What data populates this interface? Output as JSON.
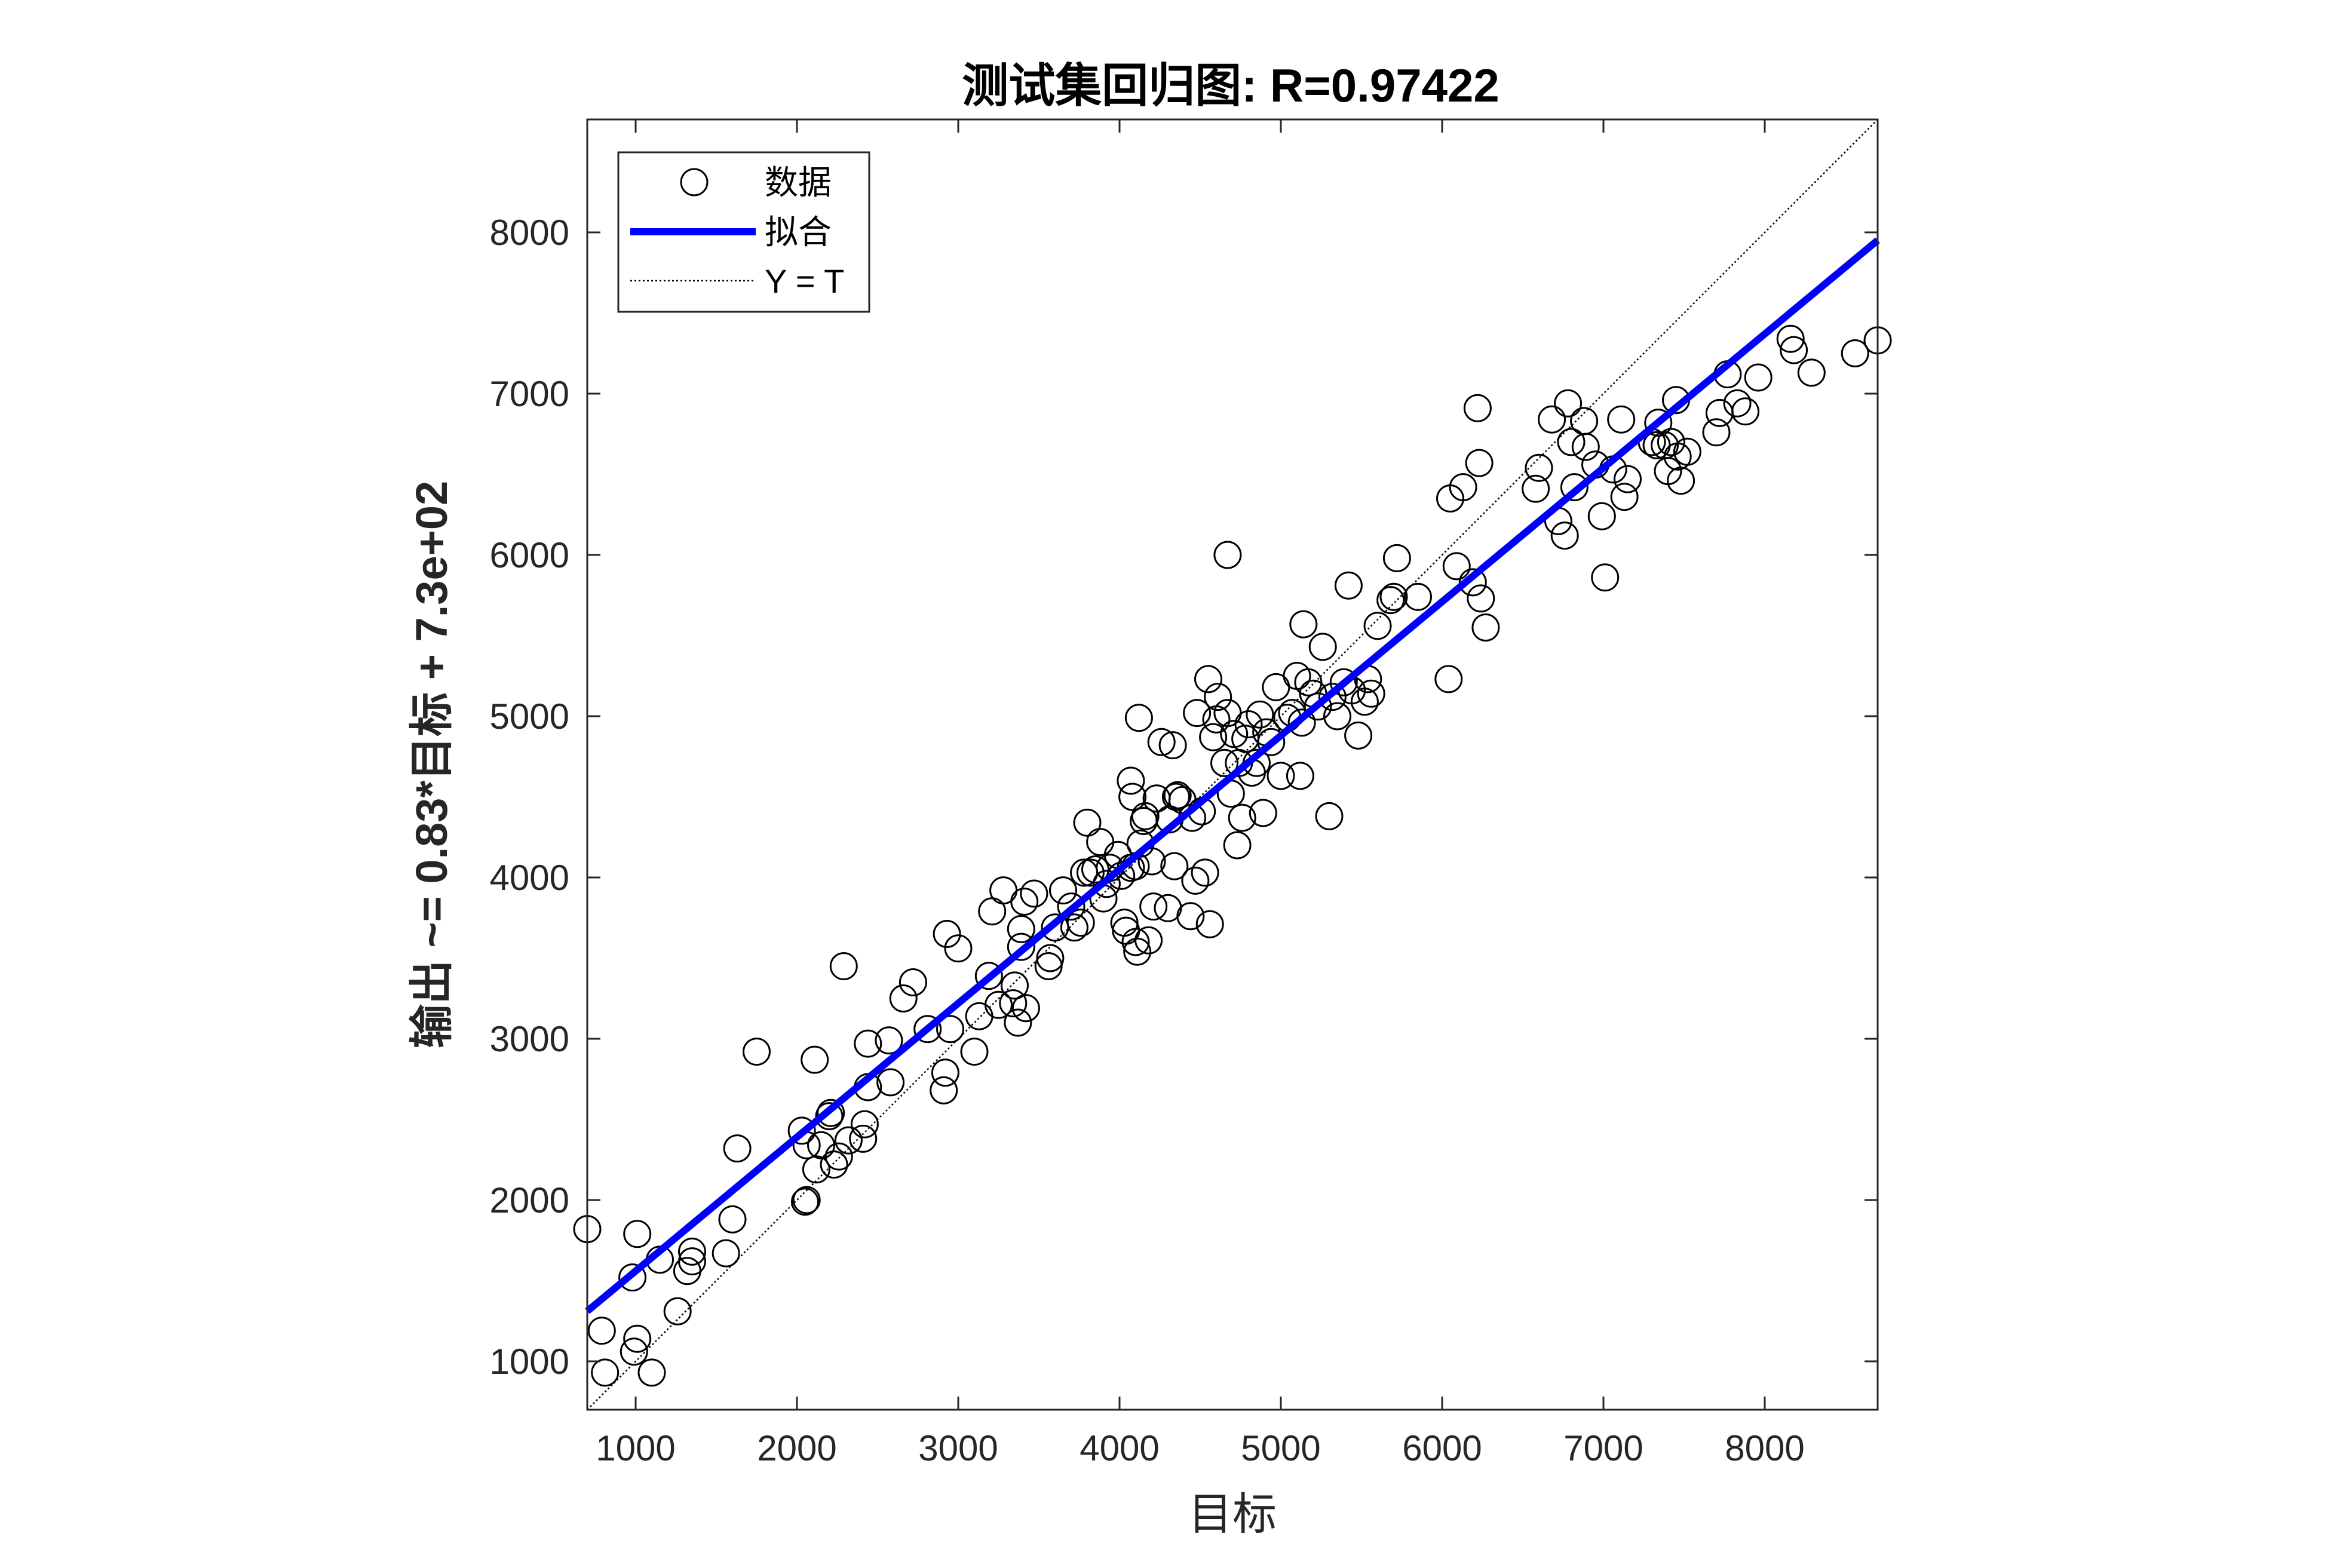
{
  "chart_data": {
    "type": "scatter",
    "title": "测试集回归图: R=0.97422",
    "xlabel": "目标",
    "ylabel": "输出 ~= 0.83*目标 + 7.3e+02",
    "xlim": [
      700,
      8700
    ],
    "ylim": [
      700,
      8700
    ],
    "xticks": [
      1000,
      2000,
      3000,
      4000,
      5000,
      6000,
      7000,
      8000
    ],
    "yticks": [
      1000,
      2000,
      3000,
      4000,
      5000,
      6000,
      7000,
      8000
    ],
    "xtick_labels": [
      "1000",
      "2000",
      "3000",
      "4000",
      "5000",
      "6000",
      "7000",
      "8000"
    ],
    "ytick_labels": [
      "1000",
      "2000",
      "3000",
      "4000",
      "5000",
      "6000",
      "7000",
      "8000"
    ],
    "grid": false,
    "legend_position": "top-left",
    "legend": [
      {
        "label": "数据",
        "marker": "circle",
        "color": "#000000"
      },
      {
        "label": "拟合",
        "marker": "line",
        "color": "#0000FF"
      },
      {
        "label": "Y = T",
        "marker": "dotted-line",
        "color": "#000000"
      }
    ],
    "fit": {
      "slope": 0.83,
      "intercept": 730,
      "color": "#0000FF"
    },
    "identity_line": {
      "color": "#000000"
    },
    "points": [
      [
        700,
        1820
      ],
      [
        790,
        1190
      ],
      [
        810,
        930
      ],
      [
        980,
        1520
      ],
      [
        990,
        1060
      ],
      [
        1010,
        1140
      ],
      [
        1010,
        1790
      ],
      [
        1100,
        930
      ],
      [
        1150,
        1630
      ],
      [
        1260,
        1310
      ],
      [
        1320,
        1560
      ],
      [
        1350,
        1620
      ],
      [
        1350,
        1680
      ],
      [
        1560,
        1670
      ],
      [
        1600,
        1880
      ],
      [
        1630,
        2320
      ],
      [
        1750,
        2920
      ],
      [
        2030,
        2430
      ],
      [
        2050,
        1990
      ],
      [
        2060,
        2000
      ],
      [
        2060,
        2340
      ],
      [
        2110,
        2870
      ],
      [
        2120,
        2190
      ],
      [
        2150,
        2340
      ],
      [
        2200,
        2520
      ],
      [
        2210,
        2540
      ],
      [
        2230,
        2220
      ],
      [
        2260,
        2270
      ],
      [
        2290,
        3450
      ],
      [
        2320,
        2370
      ],
      [
        2410,
        2380
      ],
      [
        2420,
        2470
      ],
      [
        2440,
        2700
      ],
      [
        2440,
        2970
      ],
      [
        2570,
        2990
      ],
      [
        2580,
        2730
      ],
      [
        2660,
        3250
      ],
      [
        2720,
        3350
      ],
      [
        2810,
        3060
      ],
      [
        2910,
        2680
      ],
      [
        2920,
        2790
      ],
      [
        2930,
        3650
      ],
      [
        2950,
        3060
      ],
      [
        3000,
        3560
      ],
      [
        3100,
        2920
      ],
      [
        3130,
        3140
      ],
      [
        3190,
        3390
      ],
      [
        3210,
        3790
      ],
      [
        3250,
        3210
      ],
      [
        3280,
        3920
      ],
      [
        3340,
        3220
      ],
      [
        3350,
        3330
      ],
      [
        3370,
        3100
      ],
      [
        3390,
        3570
      ],
      [
        3390,
        3680
      ],
      [
        3410,
        3850
      ],
      [
        3420,
        3190
      ],
      [
        3470,
        3900
      ],
      [
        3560,
        3450
      ],
      [
        3570,
        3500
      ],
      [
        3600,
        3690
      ],
      [
        3650,
        3920
      ],
      [
        3700,
        3820
      ],
      [
        3720,
        3690
      ],
      [
        3760,
        3720
      ],
      [
        3780,
        4030
      ],
      [
        3800,
        4340
      ],
      [
        3820,
        4030
      ],
      [
        3850,
        4050
      ],
      [
        3880,
        4220
      ],
      [
        3900,
        3870
      ],
      [
        3920,
        3960
      ],
      [
        3940,
        4060
      ],
      [
        3990,
        4140
      ],
      [
        4010,
        4010
      ],
      [
        4030,
        3720
      ],
      [
        4040,
        3670
      ],
      [
        4070,
        4060
      ],
      [
        4070,
        4600
      ],
      [
        4080,
        4500
      ],
      [
        4100,
        3600
      ],
      [
        4100,
        4070
      ],
      [
        4110,
        3540
      ],
      [
        4120,
        4990
      ],
      [
        4130,
        4210
      ],
      [
        4150,
        4350
      ],
      [
        4160,
        4380
      ],
      [
        4180,
        3610
      ],
      [
        4200,
        4100
      ],
      [
        4210,
        3820
      ],
      [
        4230,
        4490
      ],
      [
        4260,
        4840
      ],
      [
        4300,
        3810
      ],
      [
        4310,
        4360
      ],
      [
        4330,
        4820
      ],
      [
        4340,
        4070
      ],
      [
        4350,
        4500
      ],
      [
        4360,
        4510
      ],
      [
        4390,
        4480
      ],
      [
        4440,
        3760
      ],
      [
        4450,
        4370
      ],
      [
        4470,
        3980
      ],
      [
        4480,
        5020
      ],
      [
        4510,
        4410
      ],
      [
        4530,
        4030
      ],
      [
        4550,
        5230
      ],
      [
        4560,
        3710
      ],
      [
        4580,
        4870
      ],
      [
        4600,
        4980
      ],
      [
        4610,
        5120
      ],
      [
        4650,
        4710
      ],
      [
        4670,
        6000
      ],
      [
        4670,
        5020
      ],
      [
        4690,
        4520
      ],
      [
        4710,
        4890
      ],
      [
        4730,
        4200
      ],
      [
        4740,
        4710
      ],
      [
        4760,
        4370
      ],
      [
        4780,
        4860
      ],
      [
        4800,
        4950
      ],
      [
        4820,
        4650
      ],
      [
        4850,
        4710
      ],
      [
        4870,
        5010
      ],
      [
        4890,
        4400
      ],
      [
        4910,
        4900
      ],
      [
        4940,
        4840
      ],
      [
        4970,
        5180
      ],
      [
        5000,
        4630
      ],
      [
        5040,
        4990
      ],
      [
        5070,
        5020
      ],
      [
        5100,
        5250
      ],
      [
        5120,
        4630
      ],
      [
        5130,
        4960
      ],
      [
        5140,
        5570
      ],
      [
        5170,
        5210
      ],
      [
        5200,
        5140
      ],
      [
        5230,
        5060
      ],
      [
        5260,
        5430
      ],
      [
        5300,
        4380
      ],
      [
        5320,
        5120
      ],
      [
        5350,
        5000
      ],
      [
        5390,
        5210
      ],
      [
        5420,
        5810
      ],
      [
        5440,
        5160
      ],
      [
        5480,
        4880
      ],
      [
        5520,
        5090
      ],
      [
        5540,
        5230
      ],
      [
        5560,
        5140
      ],
      [
        5600,
        5560
      ],
      [
        5680,
        5720
      ],
      [
        5700,
        5740
      ],
      [
        5720,
        5980
      ],
      [
        5850,
        5740
      ],
      [
        6040,
        5230
      ],
      [
        6050,
        6350
      ],
      [
        6090,
        5930
      ],
      [
        6130,
        6420
      ],
      [
        6190,
        5830
      ],
      [
        6220,
        6910
      ],
      [
        6230,
        6570
      ],
      [
        6240,
        5730
      ],
      [
        6270,
        5550
      ],
      [
        6580,
        6410
      ],
      [
        6600,
        6540
      ],
      [
        6680,
        6840
      ],
      [
        6720,
        6210
      ],
      [
        6760,
        6120
      ],
      [
        6780,
        6940
      ],
      [
        6800,
        6700
      ],
      [
        6820,
        6420
      ],
      [
        6880,
        6830
      ],
      [
        6890,
        6670
      ],
      [
        6950,
        6560
      ],
      [
        6990,
        6240
      ],
      [
        7010,
        5860
      ],
      [
        7060,
        6530
      ],
      [
        7110,
        6840
      ],
      [
        7130,
        6360
      ],
      [
        7150,
        6470
      ],
      [
        7300,
        6700
      ],
      [
        7330,
        6680
      ],
      [
        7340,
        6820
      ],
      [
        7380,
        6680
      ],
      [
        7400,
        6520
      ],
      [
        7420,
        6700
      ],
      [
        7450,
        6960
      ],
      [
        7460,
        6610
      ],
      [
        7480,
        6460
      ],
      [
        7520,
        6640
      ],
      [
        7700,
        6760
      ],
      [
        7720,
        6880
      ],
      [
        7770,
        7120
      ],
      [
        7830,
        6940
      ],
      [
        7880,
        6890
      ],
      [
        7960,
        7100
      ],
      [
        8160,
        7340
      ],
      [
        8180,
        7270
      ],
      [
        8290,
        7130
      ],
      [
        8560,
        7250
      ],
      [
        8700,
        7330
      ]
    ]
  }
}
